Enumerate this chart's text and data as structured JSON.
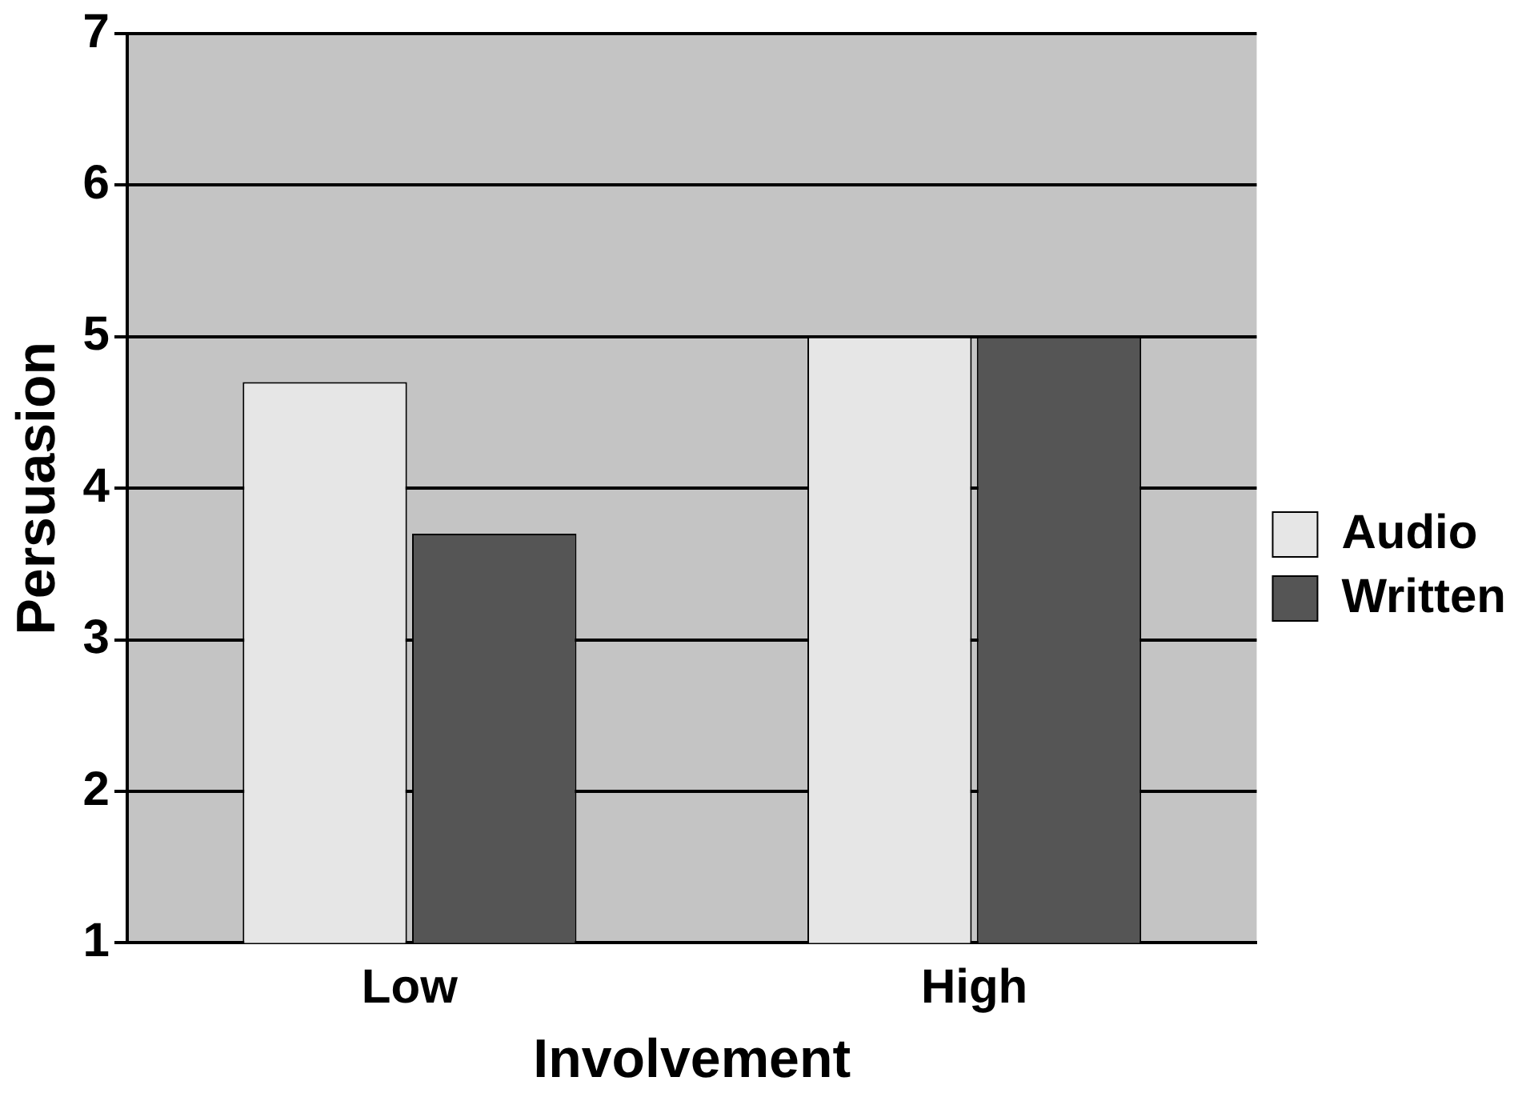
{
  "chart_data": {
    "type": "bar",
    "xlabel": "Involvement",
    "ylabel": "Persuasion",
    "categories": [
      "Low",
      "High"
    ],
    "series": [
      {
        "name": "Audio",
        "color": "#e6e6e6",
        "values": [
          4.7,
          5.0
        ]
      },
      {
        "name": "Written",
        "color": "#555555",
        "values": [
          3.7,
          5.0
        ]
      }
    ],
    "ylim": [
      1,
      7
    ],
    "yticks": [
      1,
      2,
      3,
      4,
      5,
      6,
      7
    ],
    "grid": "y",
    "legend": "right"
  }
}
